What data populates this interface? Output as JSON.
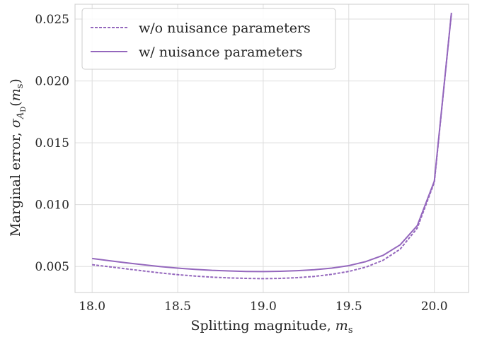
{
  "chart_data": {
    "type": "line",
    "xlabel": "Splitting magnitude, ",
    "xlabel_math": "m",
    "xlabel_sub": "s",
    "ylabel": "Marginal error, ",
    "ylabel_math_sigma": "σ",
    "ylabel_sub_A": "A",
    "ylabel_sub_D": "D",
    "ylabel_paren_open": "(",
    "ylabel_paren_m": "m",
    "ylabel_paren_sub": "s",
    "ylabel_paren_close": ")",
    "xlim": [
      17.9,
      20.2
    ],
    "ylim": [
      0.0029,
      0.0262
    ],
    "x_ticks": [
      18.0,
      18.5,
      19.0,
      19.5,
      20.0
    ],
    "x_tick_labels": [
      "18.0",
      "18.5",
      "19.0",
      "19.5",
      "20.0"
    ],
    "y_ticks": [
      0.005,
      0.01,
      0.015,
      0.02,
      0.025
    ],
    "y_tick_labels": [
      "0.005",
      "0.010",
      "0.015",
      "0.020",
      "0.025"
    ],
    "grid": true,
    "legend_placement": "top-left",
    "x": [
      18.0,
      18.1,
      18.2,
      18.3,
      18.4,
      18.5,
      18.6,
      18.7,
      18.8,
      18.9,
      19.0,
      19.1,
      19.2,
      19.3,
      19.4,
      19.5,
      19.6,
      19.7,
      19.8,
      19.9,
      20.0,
      20.1
    ],
    "series": [
      {
        "name": "w/o nuisance parameters",
        "style": "dashed",
        "color": "#9467bd",
        "values": [
          0.00515,
          0.00498,
          0.00481,
          0.00464,
          0.00448,
          0.00434,
          0.00423,
          0.00414,
          0.00408,
          0.00404,
          0.00402,
          0.00404,
          0.0041,
          0.0042,
          0.00437,
          0.0046,
          0.00495,
          0.0055,
          0.0064,
          0.0081,
          0.0118,
          0.0255
        ]
      },
      {
        "name": "w/ nuisance parameters",
        "style": "solid",
        "color": "#9467bd",
        "values": [
          0.00565,
          0.00547,
          0.0053,
          0.00514,
          0.00499,
          0.00487,
          0.00477,
          0.00469,
          0.00464,
          0.0046,
          0.00459,
          0.00461,
          0.00466,
          0.00474,
          0.00487,
          0.00507,
          0.0054,
          0.0059,
          0.00675,
          0.0083,
          0.0119,
          0.0255
        ]
      }
    ]
  }
}
